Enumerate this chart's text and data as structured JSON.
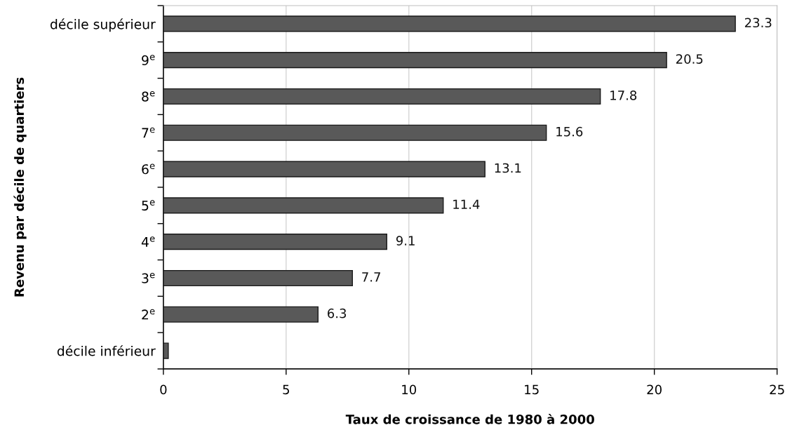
{
  "chart_data": {
    "type": "bar",
    "orientation": "horizontal",
    "xlabel": "Taux de croissance de 1980 à 2000",
    "ylabel": "Revenu par décile de quartiers",
    "categories": [
      "décile supérieur",
      "9$^{e}$",
      "8$^{e}$",
      "7$^{e}$",
      "6$^{e}$",
      "5$^{e}$",
      "4$^{e}$",
      "3$^{e}$",
      "2$^{e}$",
      "décile inférieur"
    ],
    "values": [
      23.3,
      20.5,
      17.8,
      15.6,
      13.1,
      11.4,
      9.1,
      7.7,
      6.3,
      0.2
    ],
    "value_labels": [
      "23.3",
      "20.5",
      "17.8",
      "15.6",
      "13.1",
      "11.4",
      "9.1",
      "7.7",
      "6.3",
      null
    ],
    "color": "#595959",
    "xlim": [
      0,
      25
    ],
    "xticks": [
      0,
      5,
      10,
      15,
      20,
      25
    ],
    "grid": "x"
  }
}
